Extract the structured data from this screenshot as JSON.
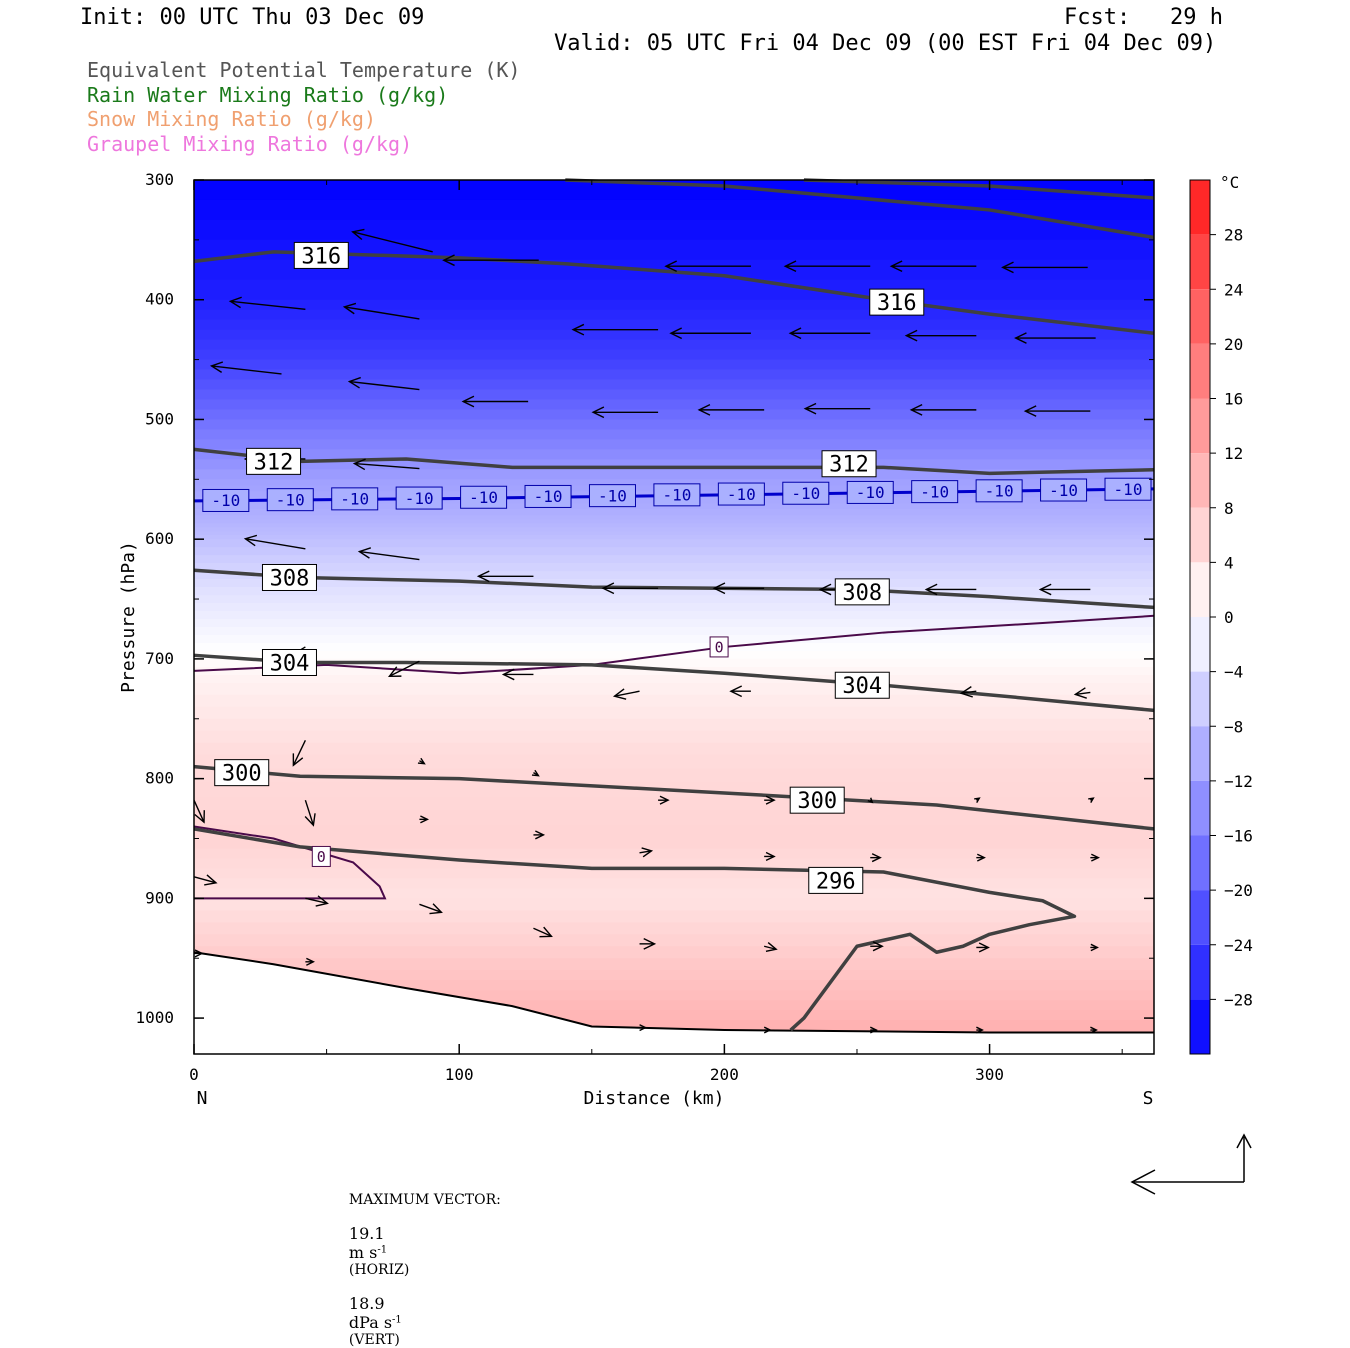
{
  "header": {
    "init": "Init: 00 UTC Thu 03 Dec 09",
    "fcst": "Fcst:   29 h",
    "valid": "Valid: 05 UTC Fri 04 Dec 09 (00 EST Fri 04 Dec 09)"
  },
  "legend_lines": [
    {
      "text": "Equivalent Potential Temperature (K)",
      "color": "#555555"
    },
    {
      "text": "Rain Water Mixing Ratio (g/kg)",
      "color": "#1a7a1a"
    },
    {
      "text": "Snow Mixing Ratio (g/kg)",
      "color": "#f0a070"
    },
    {
      "text": "Graupel Mixing Ratio (g/kg)",
      "color": "#ee77dd"
    }
  ],
  "footer": {
    "max_vector_label": "MAXIMUM VECTOR:",
    "horiz_value": "19.1",
    "horiz_unit": "m s",
    "horiz_tag": "(HORIZ)",
    "vert_value": "18.9",
    "vert_unit": "dPa s",
    "vert_tag": "(VERT)",
    "exponent": "-1"
  },
  "chart_data": {
    "type": "heatmap",
    "title": "",
    "xlabel": "Distance (km)",
    "ylabel": "Pressure (hPa)",
    "xlim": [
      0,
      362
    ],
    "ylim": [
      1030,
      300
    ],
    "x_ticks": [
      0,
      100,
      200,
      300
    ],
    "y_ticks": [
      300,
      400,
      500,
      600,
      700,
      800,
      900,
      1000
    ],
    "x_end_labels": {
      "left": "N",
      "right": "S"
    },
    "colorbar": {
      "unit": "°C",
      "range": [
        -32,
        32
      ],
      "step": 4,
      "tick_labels": [
        "28",
        "24",
        "20",
        "16",
        "12",
        "8",
        "4",
        "0",
        "−4",
        "−8",
        "−12",
        "−16",
        "−20",
        "−24",
        "−28"
      ],
      "tick_values": [
        28,
        24,
        20,
        16,
        12,
        8,
        4,
        0,
        -4,
        -8,
        -12,
        -16,
        -20,
        -24,
        -28
      ],
      "cold_color": "#0000ff",
      "warm_color": "#ff1a1a",
      "zero_color": "#ffffff"
    },
    "temperature_profile": [
      {
        "p": 300,
        "t": -32
      },
      {
        "p": 400,
        "t": -28
      },
      {
        "p": 450,
        "t": -24
      },
      {
        "p": 500,
        "t": -18
      },
      {
        "p": 550,
        "t": -12
      },
      {
        "p": 580,
        "t": -10
      },
      {
        "p": 600,
        "t": -8
      },
      {
        "p": 640,
        "t": -4
      },
      {
        "p": 680,
        "t": -1
      },
      {
        "p": 720,
        "t": 2
      },
      {
        "p": 780,
        "t": 5
      },
      {
        "p": 850,
        "t": 6
      },
      {
        "p": 900,
        "t": 4
      },
      {
        "p": 960,
        "t": 8
      },
      {
        "p": 1010,
        "t": 11
      }
    ],
    "theta_e_contours": [
      {
        "label": "316",
        "points": [
          [
            0,
            368
          ],
          [
            30,
            360
          ],
          [
            100,
            365
          ],
          [
            140,
            370
          ],
          [
            200,
            380
          ],
          [
            260,
            400
          ],
          [
            300,
            412
          ],
          [
            362,
            428
          ]
        ],
        "label_pos": [
          48,
          363
        ]
      },
      {
        "label": "316",
        "points": [
          [
            140,
            300
          ],
          [
            200,
            305
          ],
          [
            300,
            325
          ],
          [
            362,
            348
          ]
        ],
        "label_pos": [
          265,
          402
        ]
      },
      {
        "label": "316",
        "points": [
          [
            230,
            300
          ],
          [
            300,
            305
          ],
          [
            362,
            315
          ]
        ],
        "label_pos": null
      },
      {
        "label": "312",
        "points": [
          [
            0,
            525
          ],
          [
            40,
            535
          ],
          [
            80,
            533
          ],
          [
            120,
            540
          ],
          [
            200,
            540
          ],
          [
            260,
            540
          ],
          [
            300,
            545
          ],
          [
            362,
            542
          ]
        ],
        "label_pos": [
          30,
          535
        ]
      },
      {
        "label": "312",
        "points": [],
        "label_pos": [
          247,
          537
        ]
      },
      {
        "label": "308",
        "points": [
          [
            0,
            626
          ],
          [
            40,
            632
          ],
          [
            100,
            635
          ],
          [
            150,
            640
          ],
          [
            250,
            642
          ],
          [
            300,
            648
          ],
          [
            362,
            657
          ]
        ],
        "label_pos": [
          36,
          632
        ]
      },
      {
        "label": "308",
        "points": [],
        "label_pos": [
          252,
          644
        ]
      },
      {
        "label": "304",
        "points": [
          [
            0,
            697
          ],
          [
            40,
            703
          ],
          [
            80,
            703
          ],
          [
            150,
            705
          ],
          [
            200,
            712
          ],
          [
            260,
            722
          ],
          [
            300,
            730
          ],
          [
            362,
            743
          ]
        ],
        "label_pos": [
          36,
          703
        ]
      },
      {
        "label": "304",
        "points": [],
        "label_pos": [
          252,
          722
        ]
      },
      {
        "label": "300",
        "points": [
          [
            0,
            790
          ],
          [
            40,
            798
          ],
          [
            100,
            800
          ],
          [
            200,
            812
          ],
          [
            280,
            822
          ],
          [
            362,
            842
          ]
        ],
        "label_pos": [
          18,
          795
        ]
      },
      {
        "label": "300",
        "points": [],
        "label_pos": [
          235,
          818
        ]
      },
      {
        "label": "296",
        "points": [
          [
            0,
            842
          ],
          [
            40,
            857
          ],
          [
            100,
            868
          ],
          [
            150,
            875
          ],
          [
            200,
            875
          ],
          [
            260,
            878
          ],
          [
            300,
            895
          ],
          [
            320,
            902
          ],
          [
            332,
            915
          ],
          [
            315,
            922
          ],
          [
            300,
            930
          ],
          [
            290,
            940
          ],
          [
            280,
            945
          ],
          [
            270,
            930
          ],
          [
            260,
            935
          ],
          [
            250,
            940
          ],
          [
            240,
            970
          ],
          [
            230,
            1000
          ],
          [
            225,
            1010
          ]
        ],
        "label_pos": [
          242,
          885
        ]
      }
    ],
    "isotherm_minus10": {
      "label": "-10",
      "points": [
        [
          0,
          568
        ],
        [
          100,
          566
        ],
        [
          200,
          563
        ],
        [
          300,
          560
        ],
        [
          362,
          558
        ]
      ]
    },
    "freezing_contours": [
      {
        "label": "0",
        "points": [
          [
            0,
            710
          ],
          [
            50,
            705
          ],
          [
            100,
            712
          ],
          [
            150,
            705
          ],
          [
            200,
            690
          ],
          [
            260,
            678
          ],
          [
            320,
            670
          ],
          [
            362,
            664
          ]
        ],
        "label_pos": [
          198,
          690
        ]
      },
      {
        "label": "0",
        "points": [
          [
            0,
            840
          ],
          [
            30,
            850
          ],
          [
            60,
            870
          ],
          [
            70,
            890
          ],
          [
            72,
            900
          ],
          [
            40,
            900
          ],
          [
            0,
            900
          ]
        ],
        "label_pos": [
          48,
          865
        ]
      }
    ],
    "terrain": [
      [
        0,
        945
      ],
      [
        30,
        955
      ],
      [
        80,
        975
      ],
      [
        120,
        990
      ],
      [
        150,
        1007
      ],
      [
        200,
        1010
      ],
      [
        300,
        1012
      ],
      [
        362,
        1012
      ]
    ],
    "wind_vectors": [
      {
        "x": 90,
        "p": 360,
        "dx": -80,
        "dp": -20
      },
      {
        "x": 130,
        "p": 367,
        "dx": -95,
        "dp": 0
      },
      {
        "x": 210,
        "p": 372,
        "dx": -85,
        "dp": 0
      },
      {
        "x": 255,
        "p": 372,
        "dx": -85,
        "dp": 0
      },
      {
        "x": 295,
        "p": 372,
        "dx": -85,
        "dp": 0
      },
      {
        "x": 337,
        "p": 373,
        "dx": -85,
        "dp": 0
      },
      {
        "x": 42,
        "p": 408,
        "dx": -75,
        "dp": -8
      },
      {
        "x": 85,
        "p": 416,
        "dx": -75,
        "dp": -12
      },
      {
        "x": 175,
        "p": 425,
        "dx": -85,
        "dp": 0
      },
      {
        "x": 210,
        "p": 428,
        "dx": -80,
        "dp": 0
      },
      {
        "x": 255,
        "p": 428,
        "dx": -80,
        "dp": 0
      },
      {
        "x": 295,
        "p": 430,
        "dx": -70,
        "dp": 0
      },
      {
        "x": 340,
        "p": 432,
        "dx": -80,
        "dp": 0
      },
      {
        "x": 33,
        "p": 462,
        "dx": -70,
        "dp": -8
      },
      {
        "x": 85,
        "p": 475,
        "dx": -70,
        "dp": -8
      },
      {
        "x": 126,
        "p": 485,
        "dx": -65,
        "dp": 0
      },
      {
        "x": 175,
        "p": 494,
        "dx": -65,
        "dp": 0
      },
      {
        "x": 215,
        "p": 492,
        "dx": -65,
        "dp": 0
      },
      {
        "x": 255,
        "p": 491,
        "dx": -65,
        "dp": 0
      },
      {
        "x": 295,
        "p": 492,
        "dx": -65,
        "dp": 0
      },
      {
        "x": 338,
        "p": 493,
        "dx": -65,
        "dp": 0
      },
      {
        "x": 42,
        "p": 533,
        "dx": -60,
        "dp": 0
      },
      {
        "x": 85,
        "p": 541,
        "dx": -65,
        "dp": -5
      },
      {
        "x": 42,
        "p": 608,
        "dx": -60,
        "dp": -10
      },
      {
        "x": 85,
        "p": 617,
        "dx": -60,
        "dp": -8
      },
      {
        "x": 128,
        "p": 631,
        "dx": -55,
        "dp": 0
      },
      {
        "x": 175,
        "p": 641,
        "dx": -55,
        "dp": 0
      },
      {
        "x": 215,
        "p": 641,
        "dx": -50,
        "dp": 0
      },
      {
        "x": 255,
        "p": 642,
        "dx": -50,
        "dp": 0
      },
      {
        "x": 295,
        "p": 642,
        "dx": -50,
        "dp": 0
      },
      {
        "x": 338,
        "p": 642,
        "dx": -50,
        "dp": 0
      },
      {
        "x": 42,
        "p": 690,
        "dx": -25,
        "dp": 15
      },
      {
        "x": 85,
        "p": 702,
        "dx": -30,
        "dp": 15
      },
      {
        "x": 128,
        "p": 713,
        "dx": -30,
        "dp": 0
      },
      {
        "x": 168,
        "p": 727,
        "dx": -25,
        "dp": 5
      },
      {
        "x": 210,
        "p": 727,
        "dx": -20,
        "dp": 0
      },
      {
        "x": 255,
        "p": 727,
        "dx": -15,
        "dp": 2
      },
      {
        "x": 295,
        "p": 727,
        "dx": -15,
        "dp": 2
      },
      {
        "x": 338,
        "p": 728,
        "dx": -15,
        "dp": 2
      },
      {
        "x": 42,
        "p": 768,
        "dx": -12,
        "dp": 25
      },
      {
        "x": 42,
        "p": 818,
        "dx": 8,
        "dp": 25
      },
      {
        "x": 0,
        "p": 818,
        "dx": 10,
        "dp": 22
      },
      {
        "x": 85,
        "p": 785,
        "dx": 5,
        "dp": 3
      },
      {
        "x": 128,
        "p": 795,
        "dx": 5,
        "dp": 3
      },
      {
        "x": 175,
        "p": 818,
        "dx": 10,
        "dp": 0
      },
      {
        "x": 215,
        "p": 818,
        "dx": 10,
        "dp": 0
      },
      {
        "x": 255,
        "p": 818,
        "dx": 2,
        "dp": 2
      },
      {
        "x": 295,
        "p": 818,
        "dx": 3,
        "dp": -2
      },
      {
        "x": 338,
        "p": 818,
        "dx": 3,
        "dp": -2
      },
      {
        "x": 85,
        "p": 834,
        "dx": 8,
        "dp": 0
      },
      {
        "x": 128,
        "p": 847,
        "dx": 10,
        "dp": 0
      },
      {
        "x": 168,
        "p": 862,
        "dx": 12,
        "dp": -2
      },
      {
        "x": 215,
        "p": 865,
        "dx": 10,
        "dp": 0
      },
      {
        "x": 255,
        "p": 866,
        "dx": 10,
        "dp": 0
      },
      {
        "x": 295,
        "p": 866,
        "dx": 8,
        "dp": 0
      },
      {
        "x": 338,
        "p": 866,
        "dx": 8,
        "dp": 0
      },
      {
        "x": 0,
        "p": 882,
        "dx": 22,
        "dp": 6
      },
      {
        "x": 42,
        "p": 900,
        "dx": 22,
        "dp": 5
      },
      {
        "x": 85,
        "p": 905,
        "dx": 22,
        "dp": 8
      },
      {
        "x": 128,
        "p": 925,
        "dx": 18,
        "dp": 8
      },
      {
        "x": 168,
        "p": 938,
        "dx": 15,
        "dp": 0
      },
      {
        "x": 215,
        "p": 940,
        "dx": 12,
        "dp": 3
      },
      {
        "x": 255,
        "p": 940,
        "dx": 12,
        "dp": 0
      },
      {
        "x": 295,
        "p": 941,
        "dx": 12,
        "dp": 0
      },
      {
        "x": 338,
        "p": 941,
        "dx": 7,
        "dp": 0
      },
      {
        "x": 0,
        "p": 946,
        "dx": 8,
        "dp": 0
      },
      {
        "x": 42,
        "p": 953,
        "dx": 8,
        "dp": 0
      },
      {
        "x": 168,
        "p": 1008,
        "dx": 6,
        "dp": 0
      },
      {
        "x": 215,
        "p": 1010,
        "dx": 6,
        "dp": 0
      },
      {
        "x": 255,
        "p": 1010,
        "dx": 6,
        "dp": 0
      },
      {
        "x": 295,
        "p": 1010,
        "dx": 6,
        "dp": 0
      },
      {
        "x": 338,
        "p": 1010,
        "dx": 6,
        "dp": 0
      }
    ]
  }
}
